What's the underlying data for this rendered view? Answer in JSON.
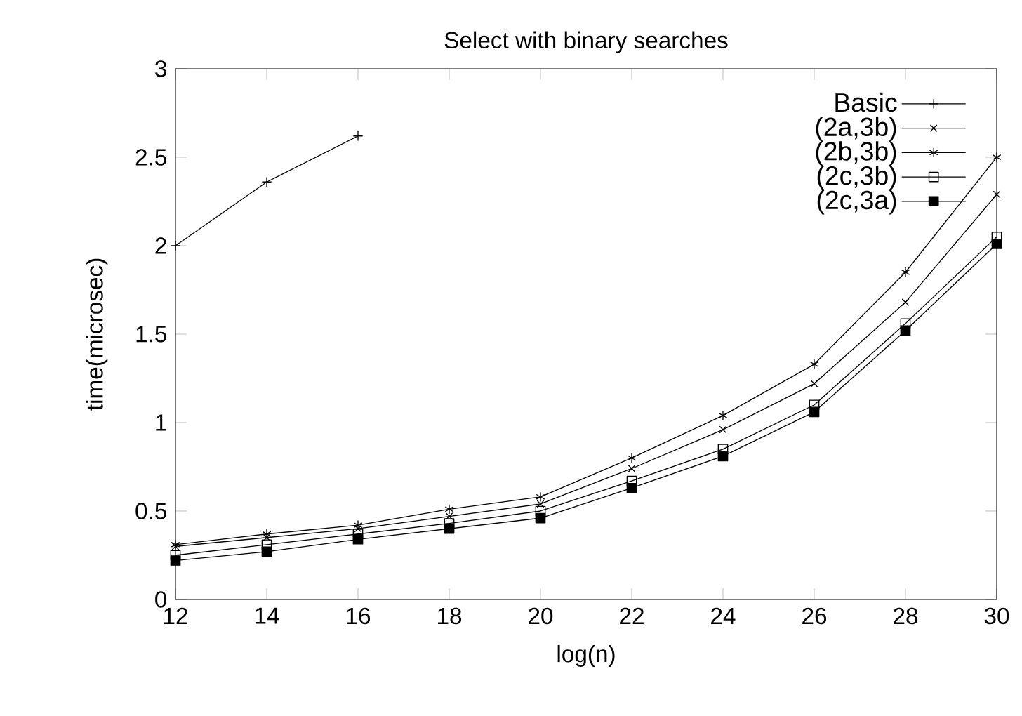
{
  "chart_data": {
    "type": "line",
    "title": "Select with binary searches",
    "xlabel": "log(n)",
    "ylabel": "time(microsec)",
    "x": [
      12,
      14,
      16,
      18,
      20,
      22,
      24,
      26,
      28,
      30
    ],
    "series": [
      {
        "name": "Basic",
        "color": "#000000",
        "marker": "plus",
        "values": [
          2.0,
          2.36,
          2.62,
          null,
          null,
          null,
          null,
          null,
          null,
          null
        ]
      },
      {
        "name": "(2a,3b)",
        "color": "#000000",
        "marker": "cross",
        "values": [
          0.3,
          0.35,
          0.4,
          0.47,
          0.54,
          0.74,
          0.96,
          1.22,
          1.68,
          2.29
        ]
      },
      {
        "name": "(2b,3b)",
        "color": "#000000",
        "marker": "cross",
        "values": [
          0.31,
          0.37,
          0.42,
          0.51,
          0.58,
          0.8,
          1.04,
          1.33,
          1.85,
          2.5
        ]
      },
      {
        "name": "(2c,3b)",
        "color": "#000000",
        "marker": "square",
        "values": [
          0.25,
          0.31,
          0.37,
          0.43,
          0.5,
          0.67,
          0.85,
          1.1,
          1.56,
          2.05
        ]
      },
      {
        "name": "(2c,3a)",
        "color": "#000000",
        "marker": "square",
        "values": [
          0.22,
          0.27,
          0.34,
          0.4,
          0.46,
          0.63,
          0.81,
          1.06,
          1.52,
          2.01
        ]
      }
    ],
    "xlim": [
      12,
      30
    ],
    "ylim": [
      0,
      3
    ],
    "xticks": [
      12,
      14,
      16,
      18,
      20,
      22,
      24,
      26,
      28,
      30
    ],
    "yticks": [
      0,
      0.5,
      1,
      1.5,
      2,
      2.5,
      3
    ],
    "legend": "top right",
    "grid": false,
    "line_style": "solid"
  }
}
